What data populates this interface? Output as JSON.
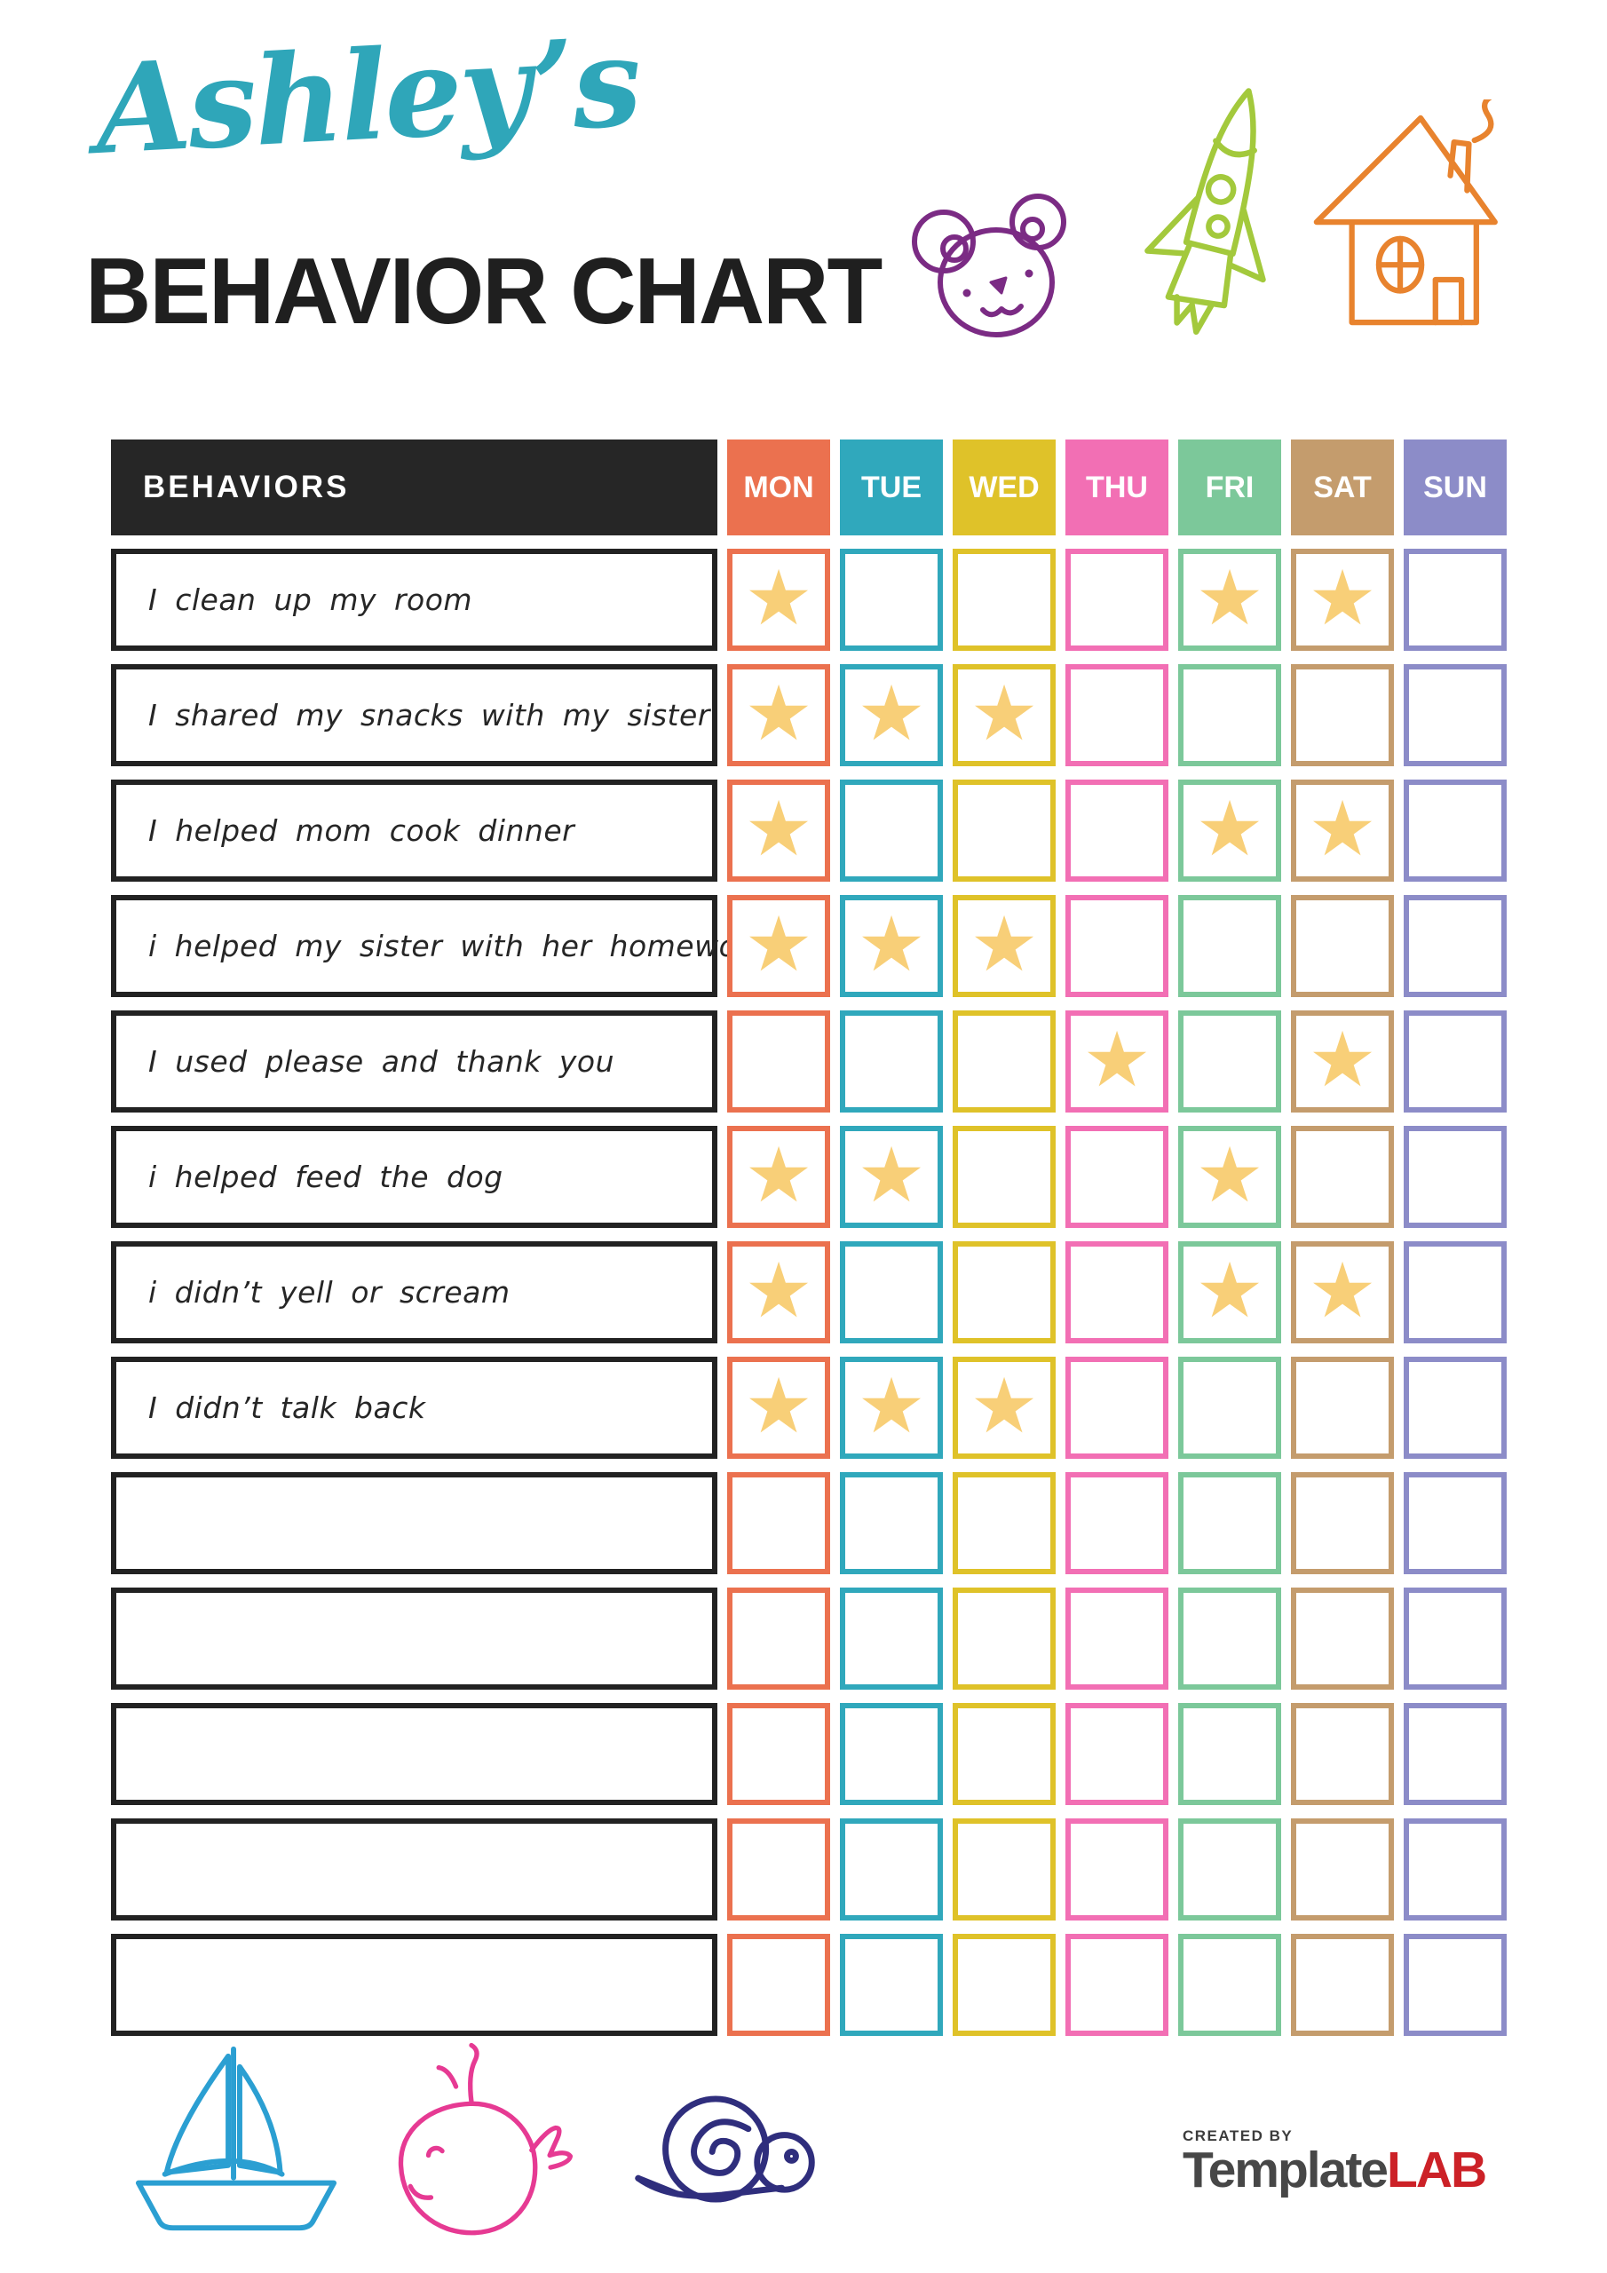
{
  "title": {
    "name": "Ashley’s",
    "subtitle": "BEHAVIOR CHART"
  },
  "table": {
    "behaviors_header": "BEHAVIORS",
    "days": [
      {
        "label": "MON",
        "color": "#EB714F"
      },
      {
        "label": "TUE",
        "color": "#30A8BC"
      },
      {
        "label": "WED",
        "color": "#DFC229"
      },
      {
        "label": "THU",
        "color": "#F26FB4"
      },
      {
        "label": "FRI",
        "color": "#7CC89A"
      },
      {
        "label": "SAT",
        "color": "#C49C6D"
      },
      {
        "label": "SUN",
        "color": "#8C8CC8"
      }
    ],
    "rows": [
      {
        "label": "I clean up my room",
        "stars": [
          1,
          0,
          0,
          0,
          1,
          1,
          0
        ]
      },
      {
        "label": "I shared my snacks with my sister",
        "stars": [
          1,
          1,
          1,
          0,
          0,
          0,
          0
        ]
      },
      {
        "label": "I helped mom cook dinner",
        "stars": [
          1,
          0,
          0,
          0,
          1,
          1,
          0
        ]
      },
      {
        "label": "i helped my sister with her homework",
        "stars": [
          1,
          1,
          1,
          0,
          0,
          0,
          0
        ]
      },
      {
        "label": "I used please and thank you",
        "stars": [
          0,
          0,
          0,
          1,
          0,
          1,
          0
        ]
      },
      {
        "label": "i helped feed the dog",
        "stars": [
          1,
          1,
          0,
          0,
          1,
          0,
          0
        ]
      },
      {
        "label": "i didn’t yell or scream",
        "stars": [
          1,
          0,
          0,
          0,
          1,
          1,
          0
        ]
      },
      {
        "label": "I didn’t talk back",
        "stars": [
          1,
          1,
          1,
          0,
          0,
          0,
          0
        ]
      },
      {
        "label": "",
        "stars": [
          0,
          0,
          0,
          0,
          0,
          0,
          0
        ]
      },
      {
        "label": "",
        "stars": [
          0,
          0,
          0,
          0,
          0,
          0,
          0
        ]
      },
      {
        "label": "",
        "stars": [
          0,
          0,
          0,
          0,
          0,
          0,
          0
        ]
      },
      {
        "label": "",
        "stars": [
          0,
          0,
          0,
          0,
          0,
          0,
          0
        ]
      },
      {
        "label": "",
        "stars": [
          0,
          0,
          0,
          0,
          0,
          0,
          0
        ]
      }
    ]
  },
  "star": {
    "glyph": "★",
    "color": "#F8CF78"
  },
  "doodle_colors": {
    "bear": "#7B2B84",
    "rocket": "#A3C93C",
    "house": "#E8832E",
    "sailboat": "#2B9FD2",
    "whale": "#E63A93",
    "snail": "#2F2E7D"
  },
  "footer": {
    "created_by": "CREATED BY",
    "brand_template": "Template",
    "brand_lab": "LAB"
  }
}
